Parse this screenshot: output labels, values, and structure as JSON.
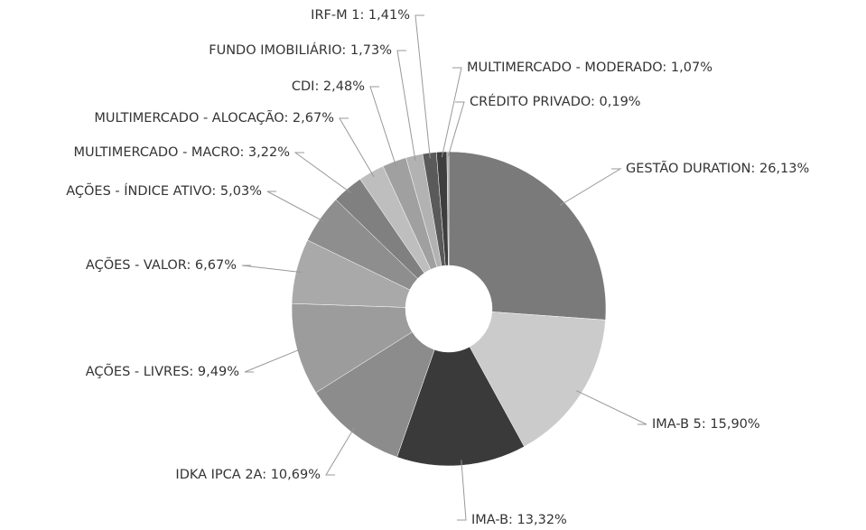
{
  "chart_data": {
    "type": "donut",
    "value_labels": [
      "GESTÃO DURATION: 26,13%",
      "IMA-B 5: 15,90%",
      "IMA-B: 13,32%",
      "IDKA IPCA 2A: 10,69%",
      "AÇÕES - LIVRES: 9,49%",
      "AÇÕES - VALOR: 6,67%",
      "AÇÕES - ÍNDICE ATIVO: 5,03%",
      "MULTIMERCADO - MACRO: 3,22%",
      "MULTIMERCADO - ALOCAÇÃO: 2,67%",
      "CDI: 2,48%",
      "FUNDO IMOBILIÁRIO: 1,73%",
      "IRF-M 1: 1,41%",
      "MULTIMERCADO - MODERADO: 1,07%",
      "CRÉDITO PRIVADO: 0,19%"
    ],
    "values": [
      26.13,
      15.9,
      13.32,
      10.69,
      9.49,
      6.67,
      5.03,
      3.22,
      2.67,
      2.48,
      1.73,
      1.41,
      1.07,
      0.19
    ],
    "colors": [
      "#7a7a7a",
      "#cbcbcb",
      "#3a3a3a",
      "#8c8c8c",
      "#9c9c9c",
      "#a9a9a9",
      "#8e8e8e",
      "#808080",
      "#bebebe",
      "#a0a0a0",
      "#b2b2b2",
      "#5a5a5a",
      "#3e3e3e",
      "#a4a4a4"
    ]
  }
}
